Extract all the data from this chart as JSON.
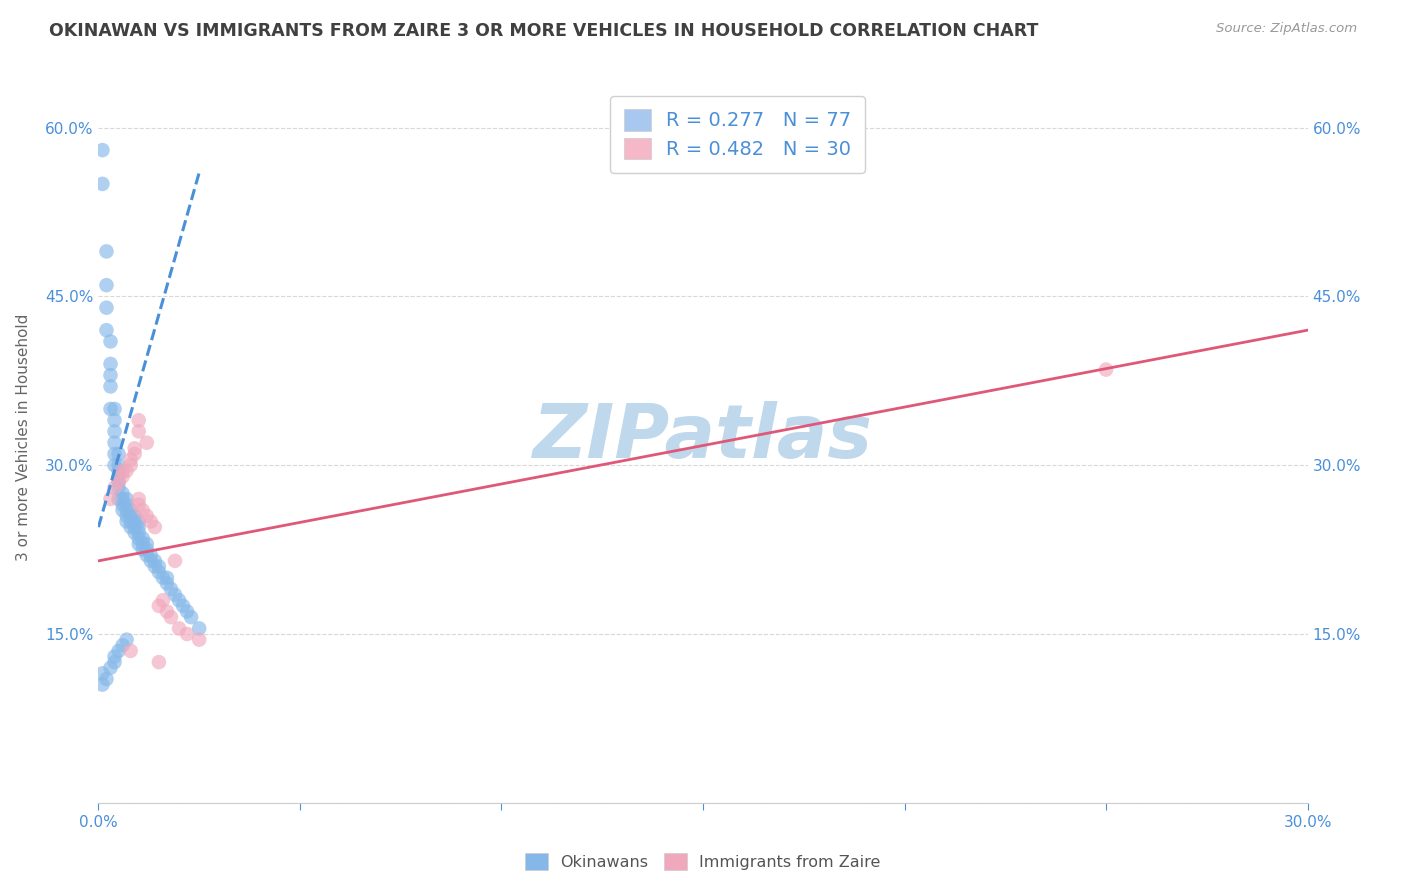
{
  "title": "OKINAWAN VS IMMIGRANTS FROM ZAIRE 3 OR MORE VEHICLES IN HOUSEHOLD CORRELATION CHART",
  "source": "Source: ZipAtlas.com",
  "xlabel": "",
  "ylabel": "3 or more Vehicles in Household",
  "xlim": [
    0.0,
    0.3
  ],
  "ylim": [
    0.0,
    0.65
  ],
  "xticks": [
    0.0,
    0.05,
    0.1,
    0.15,
    0.2,
    0.25,
    0.3
  ],
  "yticks_left": [
    0.0,
    0.15,
    0.3,
    0.45,
    0.6
  ],
  "yticks_right": [
    0.0,
    0.15,
    0.3,
    0.45,
    0.6
  ],
  "xtick_labels": [
    "0.0%",
    "",
    "",
    "",
    "",
    "",
    "30.0%"
  ],
  "ytick_labels_left": [
    "",
    "15.0%",
    "30.0%",
    "45.0%",
    "60.0%"
  ],
  "ytick_labels_right": [
    "",
    "15.0%",
    "30.0%",
    "45.0%",
    "60.0%"
  ],
  "legend_entries": [
    {
      "label": "R = 0.277   N = 77",
      "facecolor": "#a8c8f0"
    },
    {
      "label": "R = 0.482   N = 30",
      "facecolor": "#f5b8c8"
    }
  ],
  "watermark": "ZIPatlas",
  "watermark_color": "#c0d8ec",
  "background_color": "#ffffff",
  "grid_color": "#d8d8d8",
  "title_color": "#404040",
  "axis_color": "#4a90d9",
  "blue_dot_color": "#85b8e8",
  "pink_dot_color": "#f0a8bc",
  "blue_line_color": "#4a90d9",
  "pink_line_color": "#e05878",
  "blue_scatter_x": [
    0.001,
    0.001,
    0.002,
    0.002,
    0.002,
    0.002,
    0.003,
    0.003,
    0.003,
    0.003,
    0.003,
    0.004,
    0.004,
    0.004,
    0.004,
    0.004,
    0.004,
    0.005,
    0.005,
    0.005,
    0.005,
    0.005,
    0.005,
    0.005,
    0.006,
    0.006,
    0.006,
    0.006,
    0.007,
    0.007,
    0.007,
    0.007,
    0.007,
    0.008,
    0.008,
    0.008,
    0.008,
    0.009,
    0.009,
    0.009,
    0.009,
    0.01,
    0.01,
    0.01,
    0.01,
    0.01,
    0.011,
    0.011,
    0.011,
    0.012,
    0.012,
    0.012,
    0.013,
    0.013,
    0.014,
    0.014,
    0.015,
    0.015,
    0.016,
    0.017,
    0.017,
    0.018,
    0.019,
    0.02,
    0.021,
    0.022,
    0.023,
    0.025,
    0.001,
    0.002,
    0.001,
    0.003,
    0.004,
    0.004,
    0.005,
    0.006,
    0.007
  ],
  "blue_scatter_y": [
    0.55,
    0.58,
    0.42,
    0.44,
    0.46,
    0.49,
    0.35,
    0.37,
    0.38,
    0.39,
    0.41,
    0.3,
    0.31,
    0.32,
    0.33,
    0.34,
    0.35,
    0.27,
    0.28,
    0.285,
    0.29,
    0.295,
    0.3,
    0.31,
    0.26,
    0.265,
    0.27,
    0.275,
    0.25,
    0.255,
    0.26,
    0.265,
    0.27,
    0.245,
    0.25,
    0.255,
    0.26,
    0.24,
    0.245,
    0.25,
    0.255,
    0.23,
    0.235,
    0.24,
    0.245,
    0.25,
    0.225,
    0.23,
    0.235,
    0.22,
    0.225,
    0.23,
    0.215,
    0.22,
    0.21,
    0.215,
    0.205,
    0.21,
    0.2,
    0.195,
    0.2,
    0.19,
    0.185,
    0.18,
    0.175,
    0.17,
    0.165,
    0.155,
    0.105,
    0.11,
    0.115,
    0.12,
    0.125,
    0.13,
    0.135,
    0.14,
    0.145
  ],
  "pink_scatter_x": [
    0.003,
    0.004,
    0.005,
    0.006,
    0.006,
    0.007,
    0.008,
    0.008,
    0.009,
    0.009,
    0.01,
    0.01,
    0.011,
    0.012,
    0.013,
    0.014,
    0.015,
    0.016,
    0.017,
    0.018,
    0.019,
    0.02,
    0.022,
    0.025,
    0.01,
    0.01,
    0.012,
    0.015,
    0.25,
    0.008
  ],
  "pink_scatter_y": [
    0.27,
    0.28,
    0.285,
    0.29,
    0.295,
    0.295,
    0.3,
    0.305,
    0.31,
    0.315,
    0.265,
    0.27,
    0.26,
    0.255,
    0.25,
    0.245,
    0.175,
    0.18,
    0.17,
    0.165,
    0.215,
    0.155,
    0.15,
    0.145,
    0.33,
    0.34,
    0.32,
    0.125,
    0.385,
    0.135
  ],
  "blue_trendline_x": [
    0.0,
    0.025
  ],
  "blue_trendline_y": [
    0.245,
    0.56
  ],
  "pink_trendline_x": [
    0.0,
    0.3
  ],
  "pink_trendline_y": [
    0.215,
    0.42
  ]
}
